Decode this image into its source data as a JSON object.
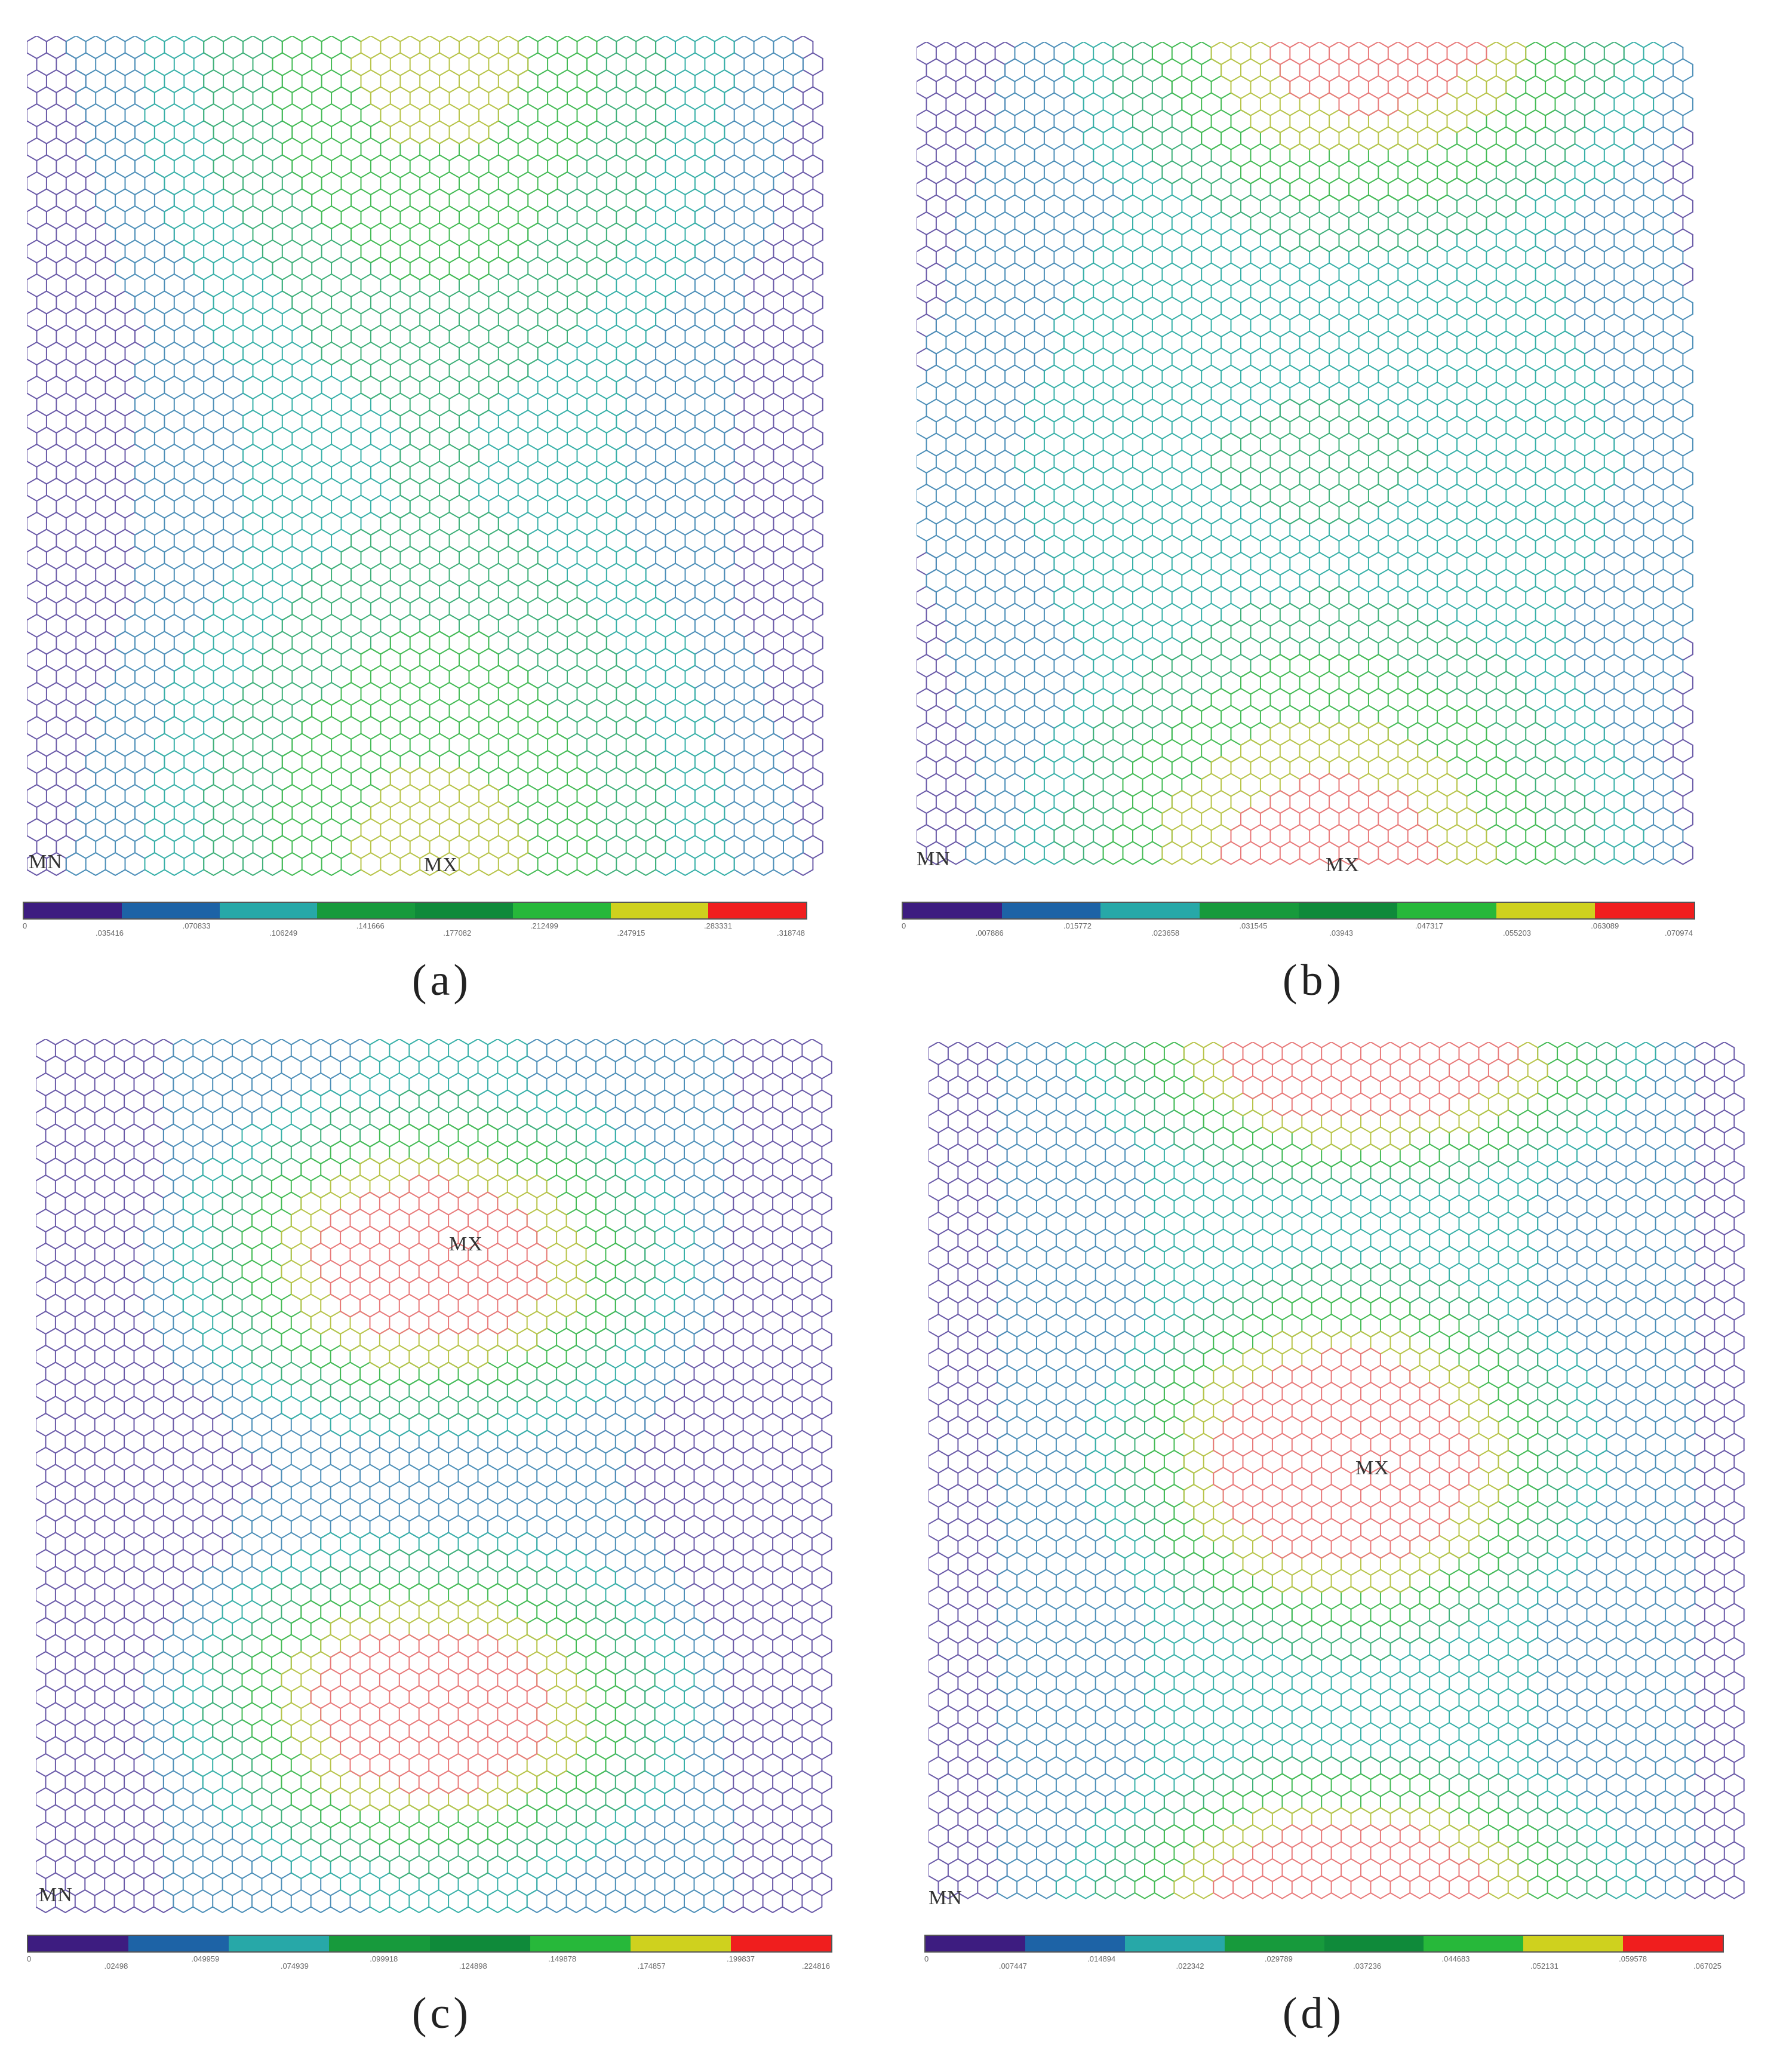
{
  "legend_colors": [
    "#3d1c80",
    "#1d63a6",
    "#27a8a8",
    "#179a3c",
    "#0f8a3a",
    "#27b83a",
    "#cfd11e",
    "#f01e1e"
  ],
  "mesh_colors": {
    "c0": "#6a5aa8",
    "c1": "#4d8fb8",
    "c2": "#38b0a8",
    "c3": "#40b07a",
    "c4": "#44bb55",
    "c5": "#b8c44a",
    "c6": "#e87a7a"
  },
  "panels": [
    {
      "id": "a",
      "caption": "(a)",
      "min_label": "MN",
      "max_label": "MX",
      "legend_ticks": [
        "0",
        ".035416",
        ".070833",
        ".106249",
        ".141666",
        ".177082",
        ".212499",
        ".247915",
        ".283331",
        ".318748"
      ]
    },
    {
      "id": "b",
      "caption": "(b)",
      "min_label": "MN",
      "max_label": "MX",
      "legend_ticks": [
        "0",
        ".007886",
        ".015772",
        ".023658",
        ".031545",
        ".03943",
        ".047317",
        ".055203",
        ".063089",
        ".070974"
      ]
    },
    {
      "id": "c",
      "caption": "(c)",
      "min_label": "MN",
      "max_label": "MX",
      "legend_ticks": [
        "0",
        ".02498",
        ".049959",
        ".074939",
        ".099918",
        ".124898",
        ".149878",
        ".174857",
        ".199837",
        ".224816"
      ]
    },
    {
      "id": "d",
      "caption": "(d)",
      "min_label": "MN",
      "max_label": "MX",
      "legend_ticks": [
        "0",
        ".007447",
        ".014894",
        ".022342",
        ".029789",
        ".037236",
        ".044683",
        ".052131",
        ".059578",
        ".067025"
      ]
    }
  ]
}
